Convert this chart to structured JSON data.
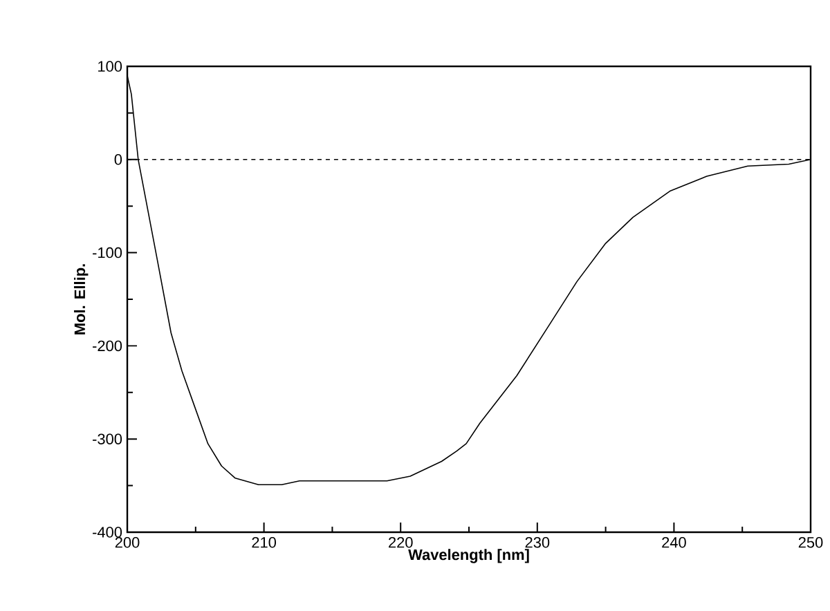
{
  "chart_data": {
    "type": "line",
    "xlabel": "Wavelength [nm]",
    "ylabel": "Mol. Ellip.",
    "series": [
      {
        "color": "#000000",
        "x": [
          200,
          200.3,
          200.8,
          202.2,
          203.2,
          204.0,
          204.9,
          205.9,
          206.9,
          207.9,
          209.6,
          211.3,
          212.6,
          215.6,
          219.0,
          220.7,
          223.0,
          224.1,
          224.8,
          225.8,
          228.5,
          230.9,
          232.9,
          235.0,
          237.0,
          239.7,
          242.4,
          245.4,
          248.4,
          250
        ],
        "values": [
          90,
          70,
          0,
          -108,
          -186,
          -227,
          -264,
          -305,
          -329,
          -342,
          -349,
          -349,
          -345,
          -345,
          -345,
          -340,
          -324,
          -313,
          -305,
          -283,
          -232,
          -177,
          -131,
          -90,
          -62,
          -34,
          -18,
          -7,
          -5,
          0
        ]
      }
    ],
    "xlim": [
      200,
      250
    ],
    "xticks": [
      200,
      210,
      220,
      230,
      240,
      250
    ],
    "ylim": [
      -400,
      100
    ],
    "yticks": [
      -400,
      -300,
      -200,
      -100,
      0,
      100
    ],
    "ref_lines": [
      {
        "axis": "y",
        "value": 0,
        "color": "#000000",
        "line_style": "dashed"
      }
    ],
    "marker": "none",
    "line_style": "solid"
  }
}
